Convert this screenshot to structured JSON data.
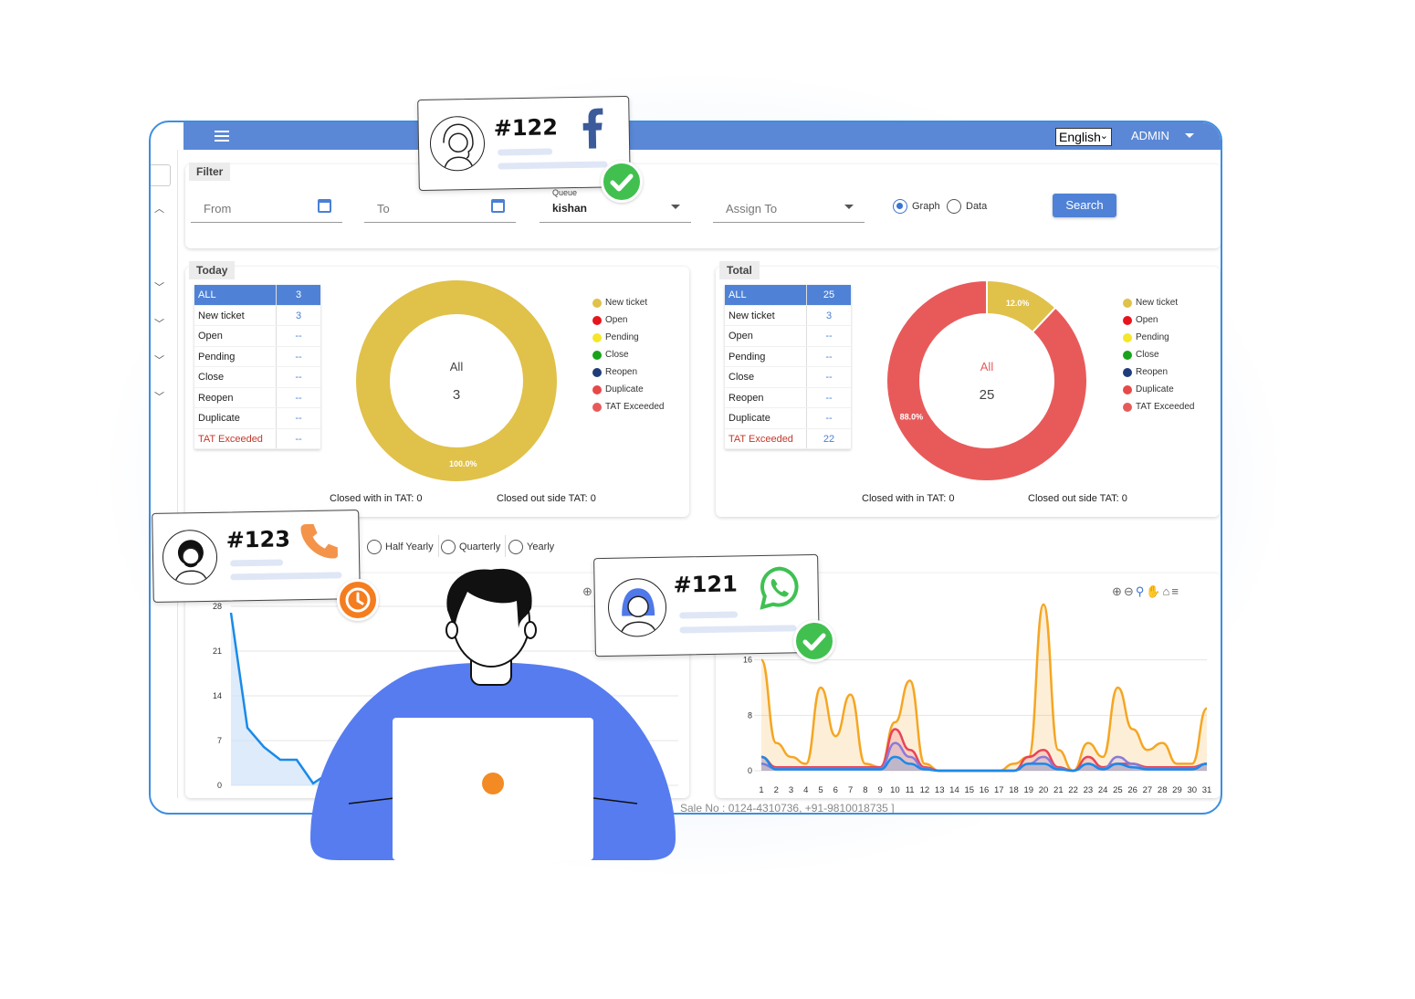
{
  "header": {
    "language": "English",
    "user": "ADMIN"
  },
  "filter": {
    "tag": "Filter",
    "from_label": "From",
    "to_label": "To",
    "queue_label": "Queue",
    "queue_value": "kishan",
    "assign_label": "Assign To",
    "radio_graph": "Graph",
    "radio_data": "Data",
    "selected_view": "Graph",
    "search_label": "Search"
  },
  "today": {
    "tag": "Today",
    "rows": [
      {
        "name": "ALL",
        "value": "3"
      },
      {
        "name": "New ticket",
        "value": "3"
      },
      {
        "name": "Open",
        "value": "--"
      },
      {
        "name": "Pending",
        "value": "--"
      },
      {
        "name": "Close",
        "value": "--"
      },
      {
        "name": "Reopen",
        "value": "--"
      },
      {
        "name": "Duplicate",
        "value": "--"
      },
      {
        "name": "TAT Exceeded",
        "value": "--"
      }
    ],
    "donut_label": "All",
    "donut_total": "3",
    "slice_labels": [
      "100.0%"
    ],
    "closed_within": "Closed with in TAT: 0",
    "closed_outside": "Closed out side TAT: 0"
  },
  "total": {
    "tag": "Total",
    "rows": [
      {
        "name": "ALL",
        "value": "25"
      },
      {
        "name": "New ticket",
        "value": "3"
      },
      {
        "name": "Open",
        "value": "--"
      },
      {
        "name": "Pending",
        "value": "--"
      },
      {
        "name": "Close",
        "value": "--"
      },
      {
        "name": "Reopen",
        "value": "--"
      },
      {
        "name": "Duplicate",
        "value": "--"
      },
      {
        "name": "TAT Exceeded",
        "value": "22"
      }
    ],
    "donut_label": "All",
    "donut_total": "25",
    "slice_labels": [
      "12.0%",
      "88.0%"
    ],
    "closed_within": "Closed with in TAT: 0",
    "closed_outside": "Closed out side TAT: 0"
  },
  "legend": [
    "New ticket",
    "Open",
    "Pending",
    "Close",
    "Reopen",
    "Duplicate",
    "TAT Exceeded"
  ],
  "legend_colors": [
    "#e0c14a",
    "#e8141c",
    "#f5e62a",
    "#1aa31a",
    "#1f3c7a",
    "#e84848",
    "#e85a5a"
  ],
  "period_options": [
    "Half Yearly",
    "Quarterly",
    "Yearly"
  ],
  "footer": "Sale No : 0124-4310736, +91-9810018735 ]",
  "cards": [
    {
      "number": "#122",
      "channel": "facebook-icon",
      "status": "check-icon"
    },
    {
      "number": "#123",
      "channel": "phone-icon",
      "status": "clock-icon"
    },
    {
      "number": "#121",
      "channel": "whatsapp-icon",
      "status": "check-icon"
    }
  ],
  "chart_data": [
    {
      "type": "donut",
      "title": "Today",
      "center_label": "All",
      "center_value": 3,
      "slices": [
        {
          "name": "New ticket",
          "value": 100.0
        }
      ],
      "colors": [
        "#e0c14a"
      ]
    },
    {
      "type": "donut",
      "title": "Total",
      "center_label": "All",
      "center_value": 25,
      "slices": [
        {
          "name": "New ticket",
          "value": 12.0
        },
        {
          "name": "TAT Exceeded",
          "value": 88.0
        }
      ],
      "colors": [
        "#e0c14a",
        "#e85a5a"
      ]
    },
    {
      "type": "line",
      "y_ticks": [
        0,
        7,
        14,
        21,
        28
      ],
      "ylim": [
        0,
        28
      ],
      "series": [
        {
          "values": [
            27,
            9,
            6,
            4,
            4,
            0.3,
            2,
            0.5
          ]
        }
      ],
      "color": "#1a8ae8"
    },
    {
      "type": "area",
      "y_ticks": [
        0,
        8,
        16
      ],
      "ylim": [
        0,
        24
      ],
      "categories": [
        "1",
        "2",
        "3",
        "4",
        "5",
        "6",
        "7",
        "8",
        "9",
        "10",
        "11",
        "12",
        "13",
        "14",
        "15",
        "16",
        "17",
        "18",
        "19",
        "20",
        "21",
        "22",
        "23",
        "24",
        "25",
        "26",
        "27",
        "28",
        "29",
        "30",
        "31"
      ],
      "series": [
        {
          "values": [
            16,
            4,
            2,
            1,
            12,
            5,
            11,
            1,
            0.5,
            7,
            13,
            1,
            0,
            0,
            0,
            0,
            0,
            1,
            2,
            24,
            3,
            0,
            4,
            2,
            12,
            6,
            3,
            4,
            1,
            1,
            9
          ],
          "color": "#f5a623"
        },
        {
          "values": [
            2,
            0.5,
            0.5,
            0.5,
            0.5,
            0.5,
            0.5,
            0.5,
            0.5,
            6,
            3,
            0.5,
            0,
            0,
            0,
            0,
            0,
            0,
            2,
            3,
            0.5,
            0,
            2,
            0.5,
            1,
            1,
            0.5,
            0.5,
            0.5,
            0.5,
            1
          ],
          "color": "#e8435a"
        },
        {
          "values": [
            1,
            0.3,
            0.3,
            0.3,
            0.3,
            0.3,
            0.3,
            0.3,
            0.3,
            4,
            2,
            0.3,
            0,
            0,
            0,
            0,
            0,
            0,
            1,
            2,
            0.3,
            0,
            1,
            0.3,
            2,
            1,
            0.3,
            0.3,
            0.3,
            0.3,
            1
          ],
          "color": "#8a7ad8"
        },
        {
          "values": [
            2,
            0.2,
            0.2,
            0.2,
            0.2,
            0.2,
            0.2,
            0.2,
            0.2,
            2,
            1,
            0.2,
            0,
            0,
            0,
            0,
            0,
            0,
            1,
            1,
            0.2,
            0,
            1,
            0.2,
            1,
            0.5,
            0.2,
            0.2,
            0.2,
            0.2,
            1
          ],
          "color": "#1a8ae8"
        }
      ]
    }
  ]
}
